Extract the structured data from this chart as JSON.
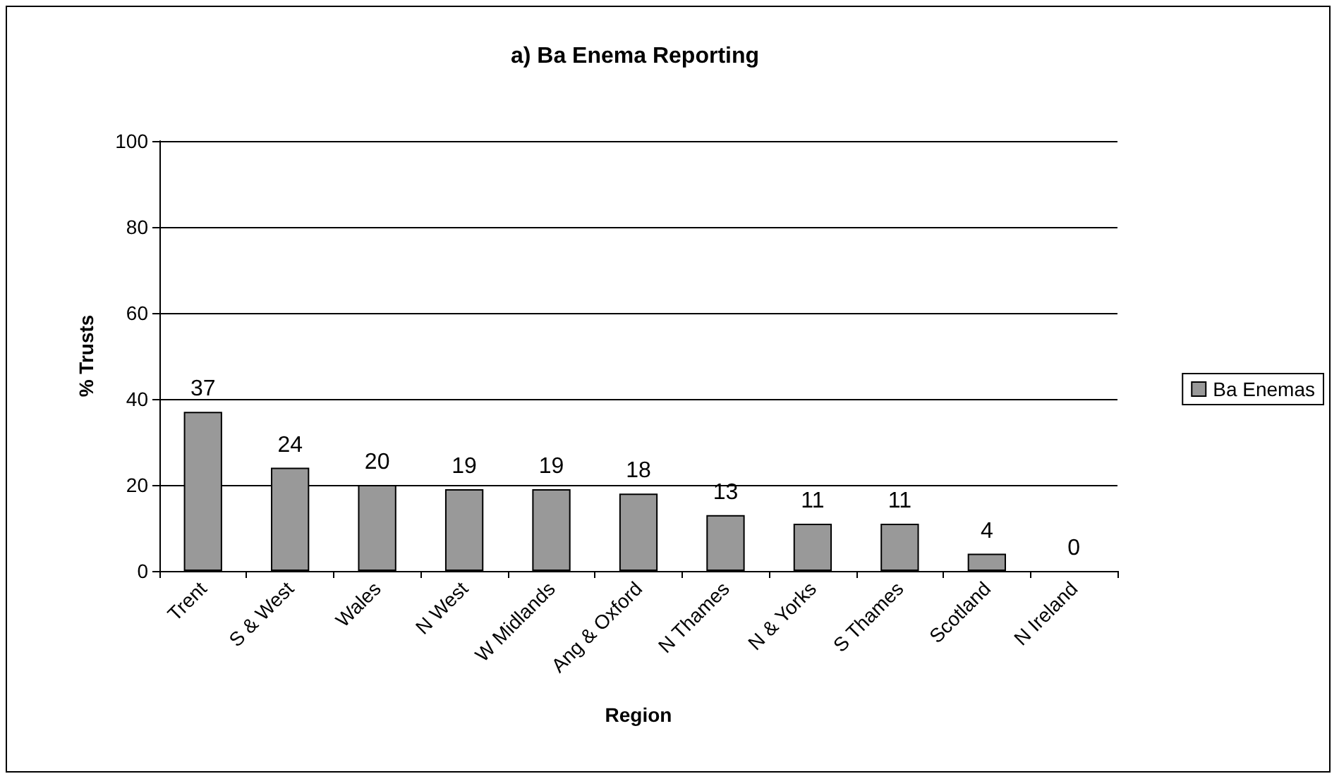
{
  "chart_data": {
    "type": "bar",
    "title": "a) Ba Enema Reporting",
    "xlabel": "Region",
    "ylabel": "% Trusts",
    "categories": [
      "Trent",
      "S & West",
      "Wales",
      "N West",
      "W Midlands",
      "Ang & Oxford",
      "N Thames",
      "N & Yorks",
      "S Thames",
      "Scotland",
      "N Ireland"
    ],
    "series": [
      {
        "name": "Ba Enemas",
        "color": "#999999",
        "values": [
          37,
          24,
          20,
          19,
          19,
          18,
          13,
          11,
          11,
          4,
          0
        ]
      }
    ],
    "ylim": [
      0,
      100
    ],
    "yticks": [
      0,
      20,
      40,
      60,
      80,
      100
    ],
    "grid": "y",
    "legend": "right",
    "data_labels": true
  }
}
